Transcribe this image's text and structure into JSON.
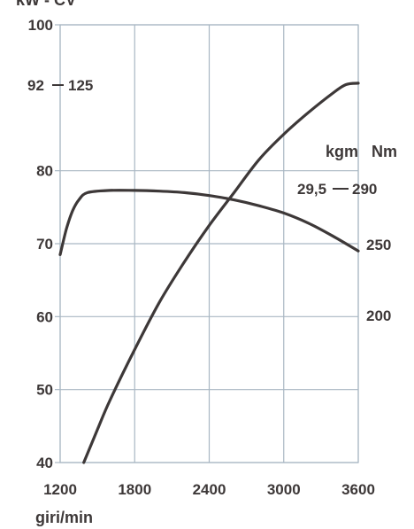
{
  "chart_data": {
    "type": "line",
    "title": "",
    "top_label": "kW - CV",
    "xlabel": "giri/min",
    "left_axis": {
      "ylim": [
        40,
        100
      ],
      "ticks": [
        40,
        50,
        60,
        70,
        80,
        100
      ]
    },
    "right_axis": {
      "unit_labels": [
        "kgm",
        "Nm"
      ],
      "ticks": [
        "290",
        "250",
        "200"
      ]
    },
    "x": {
      "xlim": [
        1200,
        3600
      ],
      "ticks": [
        1200,
        1800,
        2400,
        3000,
        3600
      ]
    },
    "grid": true,
    "annotations": {
      "peak_power": {
        "kw": "92",
        "cv": "125"
      },
      "peak_torque": {
        "kgm": "29,5",
        "nm": "290"
      }
    },
    "series": [
      {
        "quantity": "power",
        "axis": "left",
        "points": [
          [
            1390,
            40
          ],
          [
            1500,
            44.5
          ],
          [
            1600,
            48.5
          ],
          [
            1800,
            55.5
          ],
          [
            2000,
            62
          ],
          [
            2200,
            67.5
          ],
          [
            2400,
            72.5
          ],
          [
            2600,
            77
          ],
          [
            2800,
            81.5
          ],
          [
            3000,
            85
          ],
          [
            3200,
            88
          ],
          [
            3400,
            90.7
          ],
          [
            3500,
            91.8
          ],
          [
            3600,
            92
          ]
        ]
      },
      {
        "quantity": "torque",
        "axis": "left",
        "points": [
          [
            1200,
            68.5
          ],
          [
            1250,
            72
          ],
          [
            1300,
            74.5
          ],
          [
            1350,
            76
          ],
          [
            1420,
            77
          ],
          [
            1600,
            77.3
          ],
          [
            1800,
            77.3
          ],
          [
            2000,
            77.2
          ],
          [
            2200,
            77
          ],
          [
            2400,
            76.6
          ],
          [
            2600,
            76
          ],
          [
            2800,
            75.2
          ],
          [
            3000,
            74.2
          ],
          [
            3200,
            72.8
          ],
          [
            3400,
            71
          ],
          [
            3600,
            69
          ]
        ]
      }
    ]
  }
}
